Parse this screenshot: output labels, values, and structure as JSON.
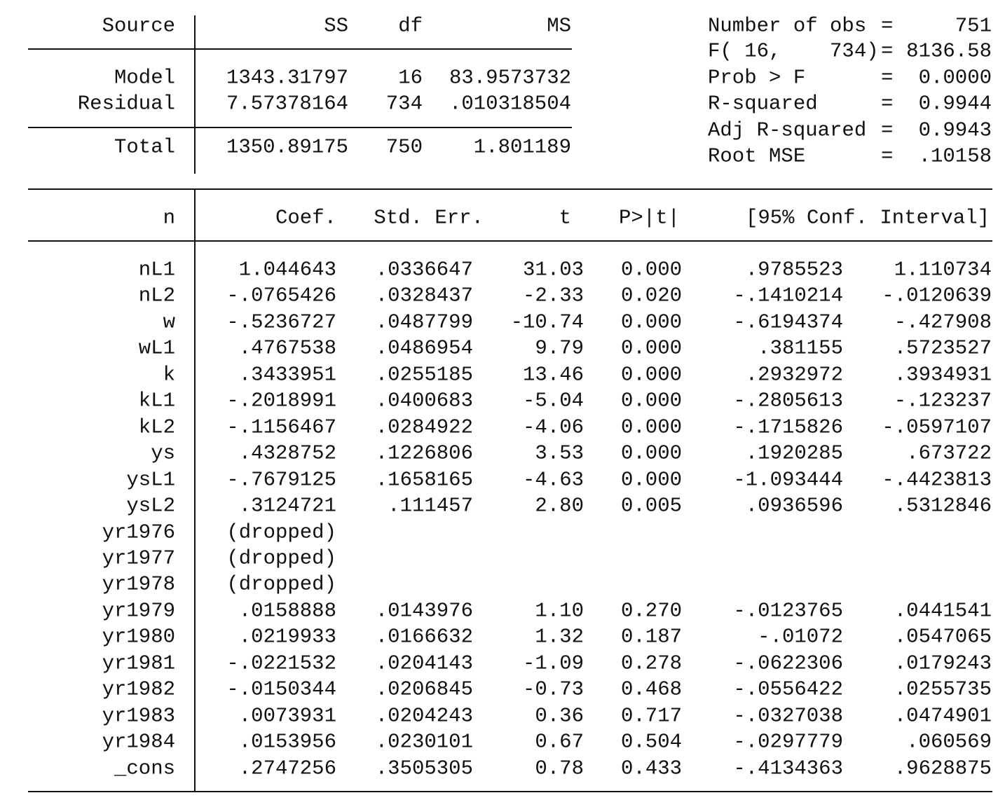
{
  "anova": {
    "headers": {
      "source": "Source",
      "ss": "SS",
      "df": "df",
      "ms": "MS"
    },
    "rows": [
      {
        "source": "Model",
        "ss": "1343.31797",
        "df": "16",
        "ms": "83.9573732"
      },
      {
        "source": "Residual",
        "ss": "7.57378164",
        "df": "734",
        "ms": ".010318504"
      },
      {
        "source": "Total",
        "ss": "1350.89175",
        "df": "750",
        "ms": "1.801189"
      }
    ]
  },
  "stats": [
    {
      "label": "Number of obs",
      "eq": "=",
      "value": "751"
    },
    {
      "label": "F( 16,    734)",
      "eq": "=",
      "value": "8136.58"
    },
    {
      "label": "Prob > F",
      "eq": "=",
      "value": "0.0000"
    },
    {
      "label": "R-squared",
      "eq": "=",
      "value": "0.9944"
    },
    {
      "label": "Adj R-squared",
      "eq": "=",
      "value": "0.9943"
    },
    {
      "label": "Root MSE",
      "eq": "=",
      "value": ".10158"
    }
  ],
  "coef": {
    "headers": {
      "var": "n",
      "coef": "Coef.",
      "se": "Std. Err.",
      "t": "t",
      "p": "P>|t|",
      "ci": "[95% Conf. Interval]"
    },
    "rows": [
      {
        "var": "nL1",
        "coef": "1.044643",
        "se": ".0336647",
        "t": "31.03",
        "p": "0.000",
        "lo": ".9785523",
        "hi": "1.110734"
      },
      {
        "var": "nL2",
        "coef": "-.0765426",
        "se": ".0328437",
        "t": "-2.33",
        "p": "0.020",
        "lo": "-.1410214",
        "hi": "-.0120639"
      },
      {
        "var": "w",
        "coef": "-.5236727",
        "se": ".0487799",
        "t": "-10.74",
        "p": "0.000",
        "lo": "-.6194374",
        "hi": "-.427908"
      },
      {
        "var": "wL1",
        "coef": ".4767538",
        "se": ".0486954",
        "t": "9.79",
        "p": "0.000",
        "lo": ".381155",
        "hi": ".5723527"
      },
      {
        "var": "k",
        "coef": ".3433951",
        "se": ".0255185",
        "t": "13.46",
        "p": "0.000",
        "lo": ".2932972",
        "hi": ".3934931"
      },
      {
        "var": "kL1",
        "coef": "-.2018991",
        "se": ".0400683",
        "t": "-5.04",
        "p": "0.000",
        "lo": "-.2805613",
        "hi": "-.123237"
      },
      {
        "var": "kL2",
        "coef": "-.1156467",
        "se": ".0284922",
        "t": "-4.06",
        "p": "0.000",
        "lo": "-.1715826",
        "hi": "-.0597107"
      },
      {
        "var": "ys",
        "coef": ".4328752",
        "se": ".1226806",
        "t": "3.53",
        "p": "0.000",
        "lo": ".1920285",
        "hi": ".673722"
      },
      {
        "var": "ysL1",
        "coef": "-.7679125",
        "se": ".1658165",
        "t": "-4.63",
        "p": "0.000",
        "lo": "-1.093444",
        "hi": "-.4423813"
      },
      {
        "var": "ysL2",
        "coef": ".3124721",
        "se": ".111457",
        "t": "2.80",
        "p": "0.005",
        "lo": ".0936596",
        "hi": ".5312846"
      },
      {
        "var": "yr1976",
        "coef": "(dropped)"
      },
      {
        "var": "yr1977",
        "coef": "(dropped)"
      },
      {
        "var": "yr1978",
        "coef": "(dropped)"
      },
      {
        "var": "yr1979",
        "coef": ".0158888",
        "se": ".0143976",
        "t": "1.10",
        "p": "0.270",
        "lo": "-.0123765",
        "hi": ".0441541"
      },
      {
        "var": "yr1980",
        "coef": ".0219933",
        "se": ".0166632",
        "t": "1.32",
        "p": "0.187",
        "lo": "-.01072",
        "hi": ".0547065"
      },
      {
        "var": "yr1981",
        "coef": "-.0221532",
        "se": ".0204143",
        "t": "-1.09",
        "p": "0.278",
        "lo": "-.0622306",
        "hi": ".0179243"
      },
      {
        "var": "yr1982",
        "coef": "-.0150344",
        "se": ".0206845",
        "t": "-0.73",
        "p": "0.468",
        "lo": "-.0556422",
        "hi": ".0255735"
      },
      {
        "var": "yr1983",
        "coef": ".0073931",
        "se": ".0204243",
        "t": "0.36",
        "p": "0.717",
        "lo": "-.0327038",
        "hi": ".0474901"
      },
      {
        "var": "yr1984",
        "coef": ".0153956",
        "se": ".0230101",
        "t": "0.67",
        "p": "0.504",
        "lo": "-.0297779",
        "hi": ".060569"
      },
      {
        "var": "_cons",
        "coef": ".2747256",
        "se": ".3505305",
        "t": "0.78",
        "p": "0.433",
        "lo": "-.4134363",
        "hi": ".9628875"
      }
    ]
  }
}
